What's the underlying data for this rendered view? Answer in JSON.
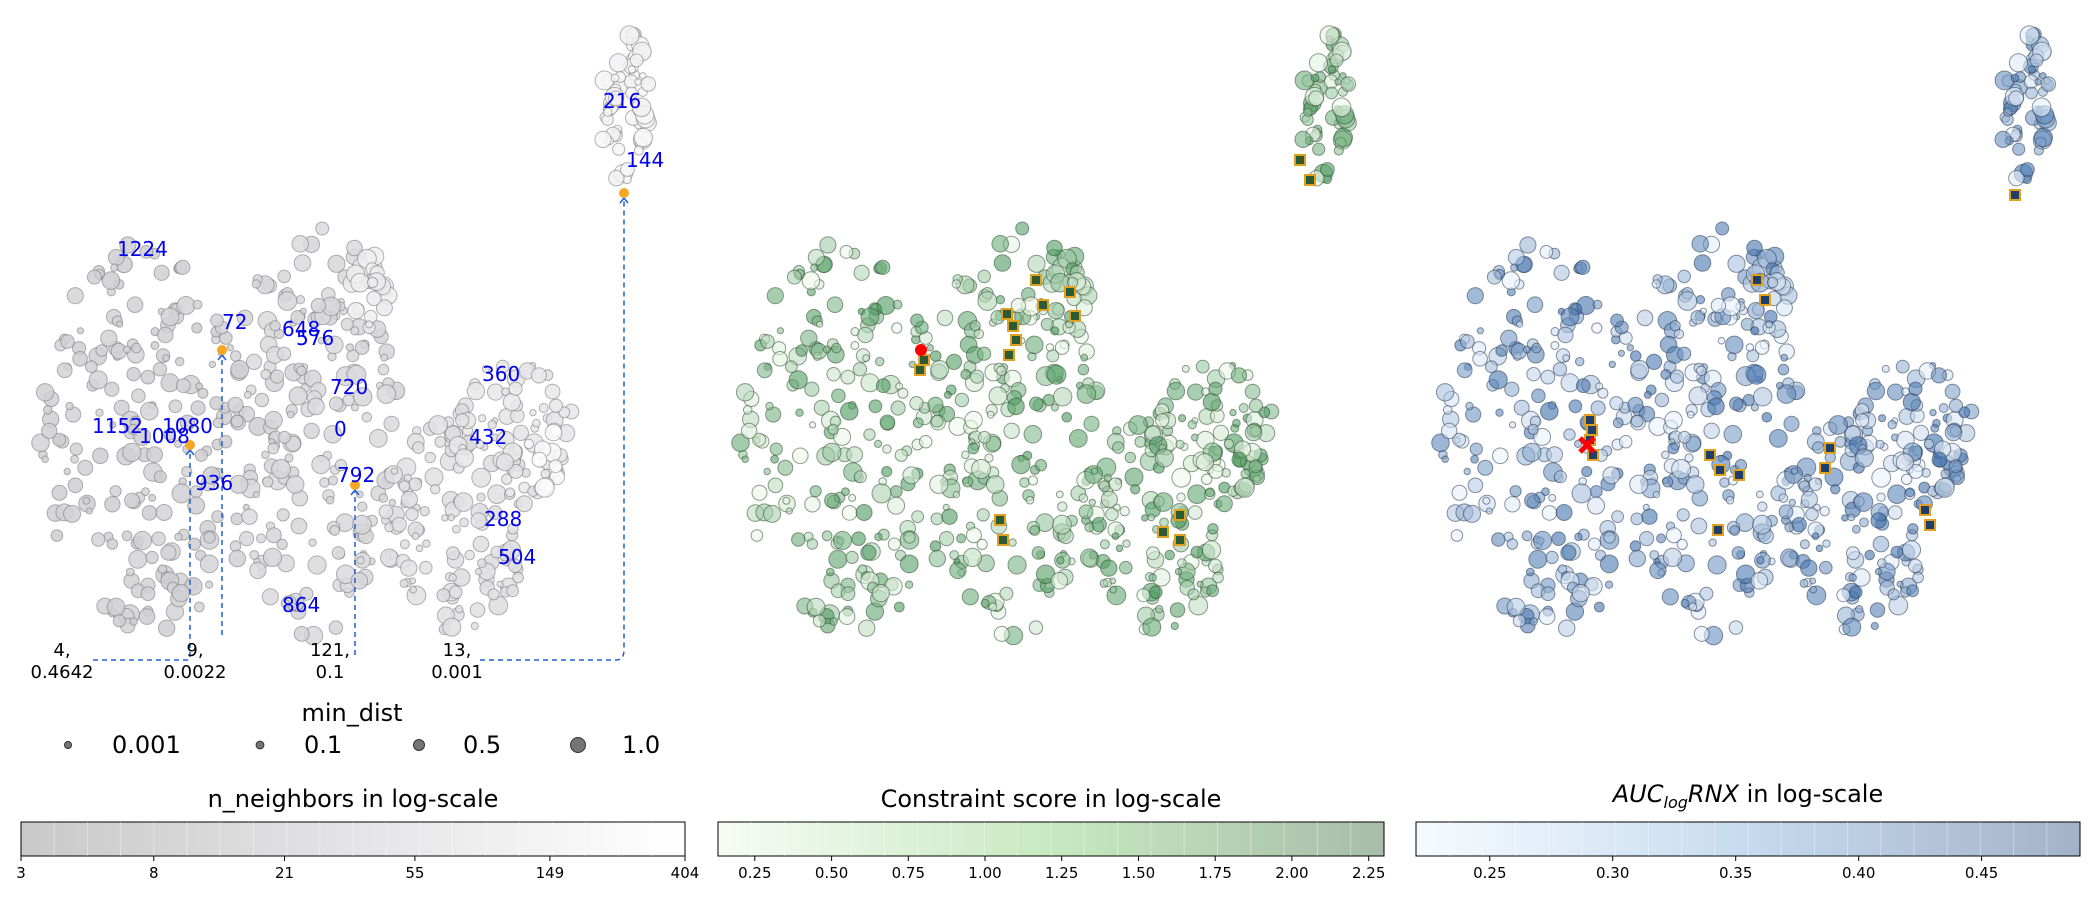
{
  "chart_data": [
    {
      "type": "scatter",
      "panel": "n_neighbors",
      "colorbar": {
        "title": "n_neighbors in log-scale",
        "tick_labels": [
          "3",
          "8",
          "21",
          "55",
          "149",
          "404"
        ],
        "scale": "log",
        "range": [
          3,
          404
        ],
        "palette": "Greys"
      },
      "point_labels": [
        "216",
        "144",
        "1224",
        "72",
        "648",
        "576",
        "720",
        "360",
        "1152",
        "1080",
        "1008",
        "0",
        "432",
        "936",
        "792",
        "288",
        "504",
        "864"
      ],
      "highlighted_params": [
        {
          "n_neighbors": "4,",
          "min_dist": "0.4642"
        },
        {
          "n_neighbors": "9,",
          "min_dist": "0.0022"
        },
        {
          "n_neighbors": "121,",
          "min_dist": "0.1"
        },
        {
          "n_neighbors": "13,",
          "min_dist": "0.001"
        }
      ],
      "size_legend": {
        "title": "min_dist",
        "entries": [
          "0.001",
          "0.1",
          "0.5",
          "1.0"
        ],
        "sizes": [
          0.001,
          0.1,
          0.5,
          1.0
        ]
      }
    },
    {
      "type": "scatter",
      "panel": "constraint",
      "colorbar": {
        "title": "Constraint score in log-scale",
        "tick_labels": [
          "0.25",
          "0.50",
          "0.75",
          "1.00",
          "1.25",
          "1.50",
          "1.75",
          "2.00",
          "2.25"
        ],
        "range": [
          0.13,
          2.3
        ],
        "palette": "Greens"
      }
    },
    {
      "type": "scatter",
      "panel": "auc",
      "colorbar": {
        "title_base": "AUC",
        "title_sub": "log",
        "title_tail": "RNX",
        "title_suffix": " in log-scale",
        "tick_labels": [
          "0.25",
          "0.30",
          "0.35",
          "0.40",
          "0.45"
        ],
        "range": [
          0.22,
          0.49
        ],
        "palette": "Blues"
      }
    }
  ],
  "colors": {
    "annotation_text": "#0000ee",
    "arrow": "#1f5fd6",
    "selected_point": "#f5a623",
    "best_marker": "#ff0000",
    "square_edge": "#e0a020"
  }
}
